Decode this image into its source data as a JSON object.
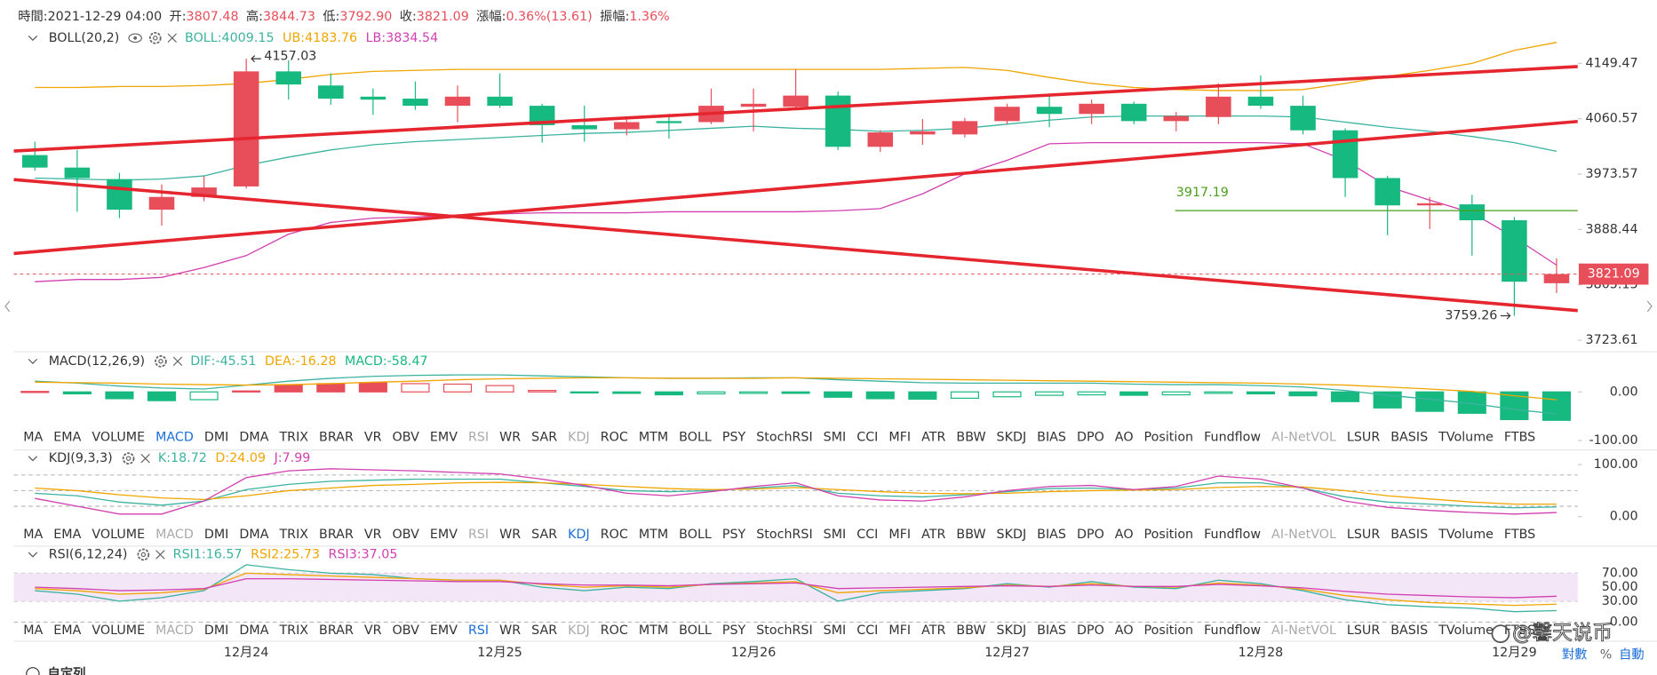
{
  "header": [
    {
      "label": "時間:",
      "value": "2021-12-29 04:00",
      "color": "#333333"
    },
    {
      "label": "开:",
      "value": "3807.48",
      "color": "#e84e5a"
    },
    {
      "label": "高:",
      "value": "3844.73",
      "color": "#e84e5a"
    },
    {
      "label": "低:",
      "value": "3792.90",
      "color": "#e84e5a"
    },
    {
      "label": "收:",
      "value": "3821.09",
      "color": "#e84e5a"
    },
    {
      "label": "漲幅:",
      "value": "0.36%(13.61)",
      "color": "#e84e5a"
    },
    {
      "label": "振幅:",
      "value": "1.36%",
      "color": "#e84e5a"
    }
  ],
  "label_separator": ":",
  "indicator_tabs": [
    "MA",
    "EMA",
    "VOLUME",
    "MACD",
    "DMI",
    "DMA",
    "TRIX",
    "BRAR",
    "VR",
    "OBV",
    "EMV",
    "RSI",
    "WR",
    "SAR",
    "KDJ",
    "ROC",
    "MTM",
    "BOLL",
    "PSY",
    "StochRSI",
    "SMI",
    "CCI",
    "MFI",
    "ATR",
    "BBW",
    "SKDJ",
    "BIAS",
    "DPO",
    "AO",
    "Position",
    "Fundflow",
    "AI-NetVOL",
    "LSUR",
    "BASIS",
    "TVolume",
    "FTBS"
  ],
  "footer": {
    "scale_modes": [
      "對數",
      "%",
      "自動"
    ],
    "custom_columns": "自定列"
  },
  "watermark": "@馨天说币",
  "chart_data": [
    {
      "type": "candlestick",
      "title": "BOLL(20,2)",
      "log": true,
      "ylim": [
        3708.25,
        4236.1
      ],
      "yticks": [
        4149.47,
        4060.57,
        3973.57,
        3888.44,
        3805.13,
        3723.61
      ],
      "up_color": "#e84e5a",
      "down_color": "#16b97f",
      "categories": [
        null,
        null,
        null,
        null,
        null,
        "12月24",
        null,
        null,
        null,
        null,
        null,
        "12月25",
        null,
        null,
        null,
        null,
        null,
        "12月26",
        null,
        null,
        null,
        null,
        null,
        "12月27",
        null,
        null,
        null,
        null,
        null,
        "12月28",
        null,
        null,
        null,
        null,
        null,
        "12月29",
        null
      ],
      "ohlc": [
        [
          4003.2,
          4024.3,
          3978.8,
          3983.7
        ],
        [
          3983.7,
          4011.3,
          3915.4,
          3967.4
        ],
        [
          3965.8,
          3975.5,
          3905.6,
          3918.6
        ],
        [
          3918.6,
          3957.6,
          3894.2,
          3938.2
        ],
        [
          3938.2,
          3970.7,
          3931.7,
          3952.8
        ],
        [
          3954.4,
          4157.03,
          3951.1,
          4136.5
        ],
        [
          4136.5,
          4154.35,
          4091.0,
          4115.3
        ],
        [
          4113.7,
          4133.2,
          4082.8,
          4092.6
        ],
        [
          4095.8,
          4108.8,
          4066.6,
          4091.0
        ],
        [
          4092.6,
          4120.2,
          4074.7,
          4081.2
        ],
        [
          4081.2,
          4113.7,
          4055.2,
          4095.8
        ],
        [
          4095.8,
          4133.2,
          4077.9,
          4081.2
        ],
        [
          4081.2,
          4084.4,
          4022.7,
          4050.3
        ],
        [
          4050.3,
          4081.2,
          4024.3,
          4043.8
        ],
        [
          4043.8,
          4063.3,
          4034.1,
          4055.2
        ],
        [
          4056.8,
          4068.2,
          4029.2,
          4053.6
        ],
        [
          4055.2,
          4108.8,
          4051.9,
          4081.2
        ],
        [
          4079.6,
          4108.8,
          4040.6,
          4084.4
        ],
        [
          4079.6,
          4139.7,
          4077.9,
          4097.5
        ],
        [
          4097.5,
          4104.0,
          4011.3,
          4016.2
        ],
        [
          4016.2,
          4042.2,
          4008.1,
          4038.9
        ],
        [
          4035.7,
          4060.1,
          4019.4,
          4040.6
        ],
        [
          4035.7,
          4061.7,
          4030.8,
          4056.8
        ],
        [
          4056.8,
          4084.4,
          4051.9,
          4079.6
        ],
        [
          4079.6,
          4100.7,
          4047.1,
          4068.2
        ],
        [
          4068.2,
          4091.0,
          4051.9,
          4084.4
        ],
        [
          4084.4,
          4087.7,
          4051.9,
          4056.8
        ],
        [
          4056.8,
          4071.4,
          4040.6,
          4064.9
        ],
        [
          4063.3,
          4117.0,
          4051.9,
          4095.8
        ],
        [
          4095.8,
          4130.0,
          4076.3,
          4081.2
        ],
        [
          4081.2,
          4097.5,
          4035.7,
          4042.2
        ],
        [
          4042.2,
          4045.4,
          3938.2,
          3967.4
        ],
        [
          3967.4,
          3970.7,
          3879.6,
          3925.2
        ],
        [
          3925.2,
          3938.2,
          3889.1,
          3928.4
        ],
        [
          3926.8,
          3941.4,
          3848.8,
          3902.4
        ],
        [
          3902.4,
          3907.3,
          3759.26,
          3809.7
        ],
        [
          3807.48,
          3844.73,
          3792.9,
          3821.09
        ]
      ],
      "series": [
        {
          "name": "BOLL",
          "color": "#3bb3a0",
          "values": [
            3967.4,
            3965.8,
            3964.2,
            3965.8,
            3970.7,
            3987.0,
            4000.0,
            4011.3,
            4019.4,
            4024.3,
            4027.6,
            4030.8,
            4034.1,
            4037.3,
            4038.9,
            4042.2,
            4045.4,
            4048.7,
            4045.4,
            4043.8,
            4040.6,
            4042.2,
            4045.4,
            4051.9,
            4058.4,
            4063.3,
            4064.9,
            4064.9,
            4064.9,
            4064.9,
            4063.3,
            4055.2,
            4047.1,
            4040.6,
            4032.4,
            4022.7,
            4009.15
          ]
        },
        {
          "name": "UB",
          "color": "#f0a500",
          "values": [
            4110.5,
            4110.5,
            4112.1,
            4112.1,
            4113.7,
            4117.0,
            4123.5,
            4131.6,
            4136.5,
            4138.1,
            4139.7,
            4139.7,
            4139.7,
            4139.7,
            4139.7,
            4139.7,
            4139.7,
            4139.7,
            4139.7,
            4139.7,
            4139.7,
            4141.3,
            4143.0,
            4138.1,
            4126.7,
            4117.0,
            4110.5,
            4107.2,
            4105.6,
            4105.6,
            4107.2,
            4117.0,
            4128.4,
            4138.1,
            4149.5,
            4170.6,
            4183.76
          ]
        },
        {
          "name": "LB",
          "color": "#d23fb0",
          "values": [
            3809.7,
            3813.0,
            3813.0,
            3816.2,
            3830.9,
            3848.8,
            3881.3,
            3899.1,
            3905.6,
            3907.3,
            3910.5,
            3912.1,
            3913.8,
            3913.8,
            3913.8,
            3915.4,
            3915.4,
            3915.4,
            3915.4,
            3917.0,
            3920.3,
            3943.0,
            3973.9,
            3995.0,
            4021.0,
            4022.7,
            4022.7,
            4022.7,
            4022.7,
            4022.7,
            4021.0,
            3995.0,
            3954.4,
            3933.3,
            3913.8,
            3876.4,
            3834.54
          ]
        }
      ],
      "hlines": [
        {
          "value": 3917.19,
          "color": "#4a9e1a"
        }
      ],
      "last_price_color": "#e84e5a"
    },
    {
      "type": "macd",
      "title": "MACD(12,26,9)",
      "ylim": [
        -100,
        41.3
      ],
      "yticks": [
        {
          "value": 0,
          "label": "0.00"
        },
        {
          "value": -100,
          "label": "-100.00"
        }
      ],
      "active_tab": 3,
      "disabled_tabs": [
        11,
        14,
        31
      ],
      "up_color": "#e84e5a",
      "down_color": "#16b97f",
      "histogram": {
        "name": "MACD",
        "color": "#16b97f",
        "values": [
          1,
          -4,
          -14,
          -18,
          -16,
          2,
          14,
          17,
          19,
          17,
          16,
          13,
          3,
          -2,
          -3,
          -6,
          -4,
          -3,
          -3,
          -11,
          -14,
          -15,
          -13,
          -10,
          -7,
          -6,
          -7,
          -6,
          -3,
          -4,
          -8,
          -20,
          -33,
          -40,
          -44,
          -57,
          -58.47
        ]
      },
      "series": [
        {
          "name": "DIF",
          "color": "#3bb3a0",
          "values": [
            22,
            18,
            12,
            8,
            6,
            14,
            22,
            28,
            32,
            34,
            35,
            35,
            33,
            31,
            29,
            28,
            28,
            29,
            29,
            25,
            22,
            19,
            18,
            18,
            18,
            18,
            16,
            15,
            15,
            13,
            10,
            3,
            -7,
            -15,
            -24,
            -36,
            -45.51
          ]
        },
        {
          "name": "DEA",
          "color": "#f0a500",
          "values": [
            20,
            19,
            18,
            16,
            15,
            14,
            15,
            17,
            20,
            22,
            25,
            27,
            28,
            29,
            29,
            28,
            28,
            28,
            29,
            28,
            27,
            26,
            25,
            24,
            23,
            22,
            21,
            20,
            19,
            18,
            16,
            14,
            10,
            6,
            1,
            -8,
            -16.28
          ]
        }
      ]
    },
    {
      "type": "line",
      "title": "KDJ(9,3,3)",
      "ylim": [
        -14,
        124
      ],
      "yticks": [
        {
          "value": 100,
          "label": "100.00"
        },
        {
          "value": 0,
          "label": "0.00"
        }
      ],
      "ref_lines": [
        80,
        50,
        20
      ],
      "active_tab": 14,
      "disabled_tabs": [
        3,
        11,
        31
      ],
      "series": [
        {
          "name": "K",
          "color": "#3bb3a0",
          "values": [
            45,
            40,
            28,
            22,
            30,
            52,
            62,
            68,
            70,
            72,
            72,
            72,
            65,
            58,
            50,
            48,
            50,
            55,
            60,
            45,
            40,
            38,
            42,
            48,
            54,
            55,
            52,
            55,
            65,
            65,
            55,
            38,
            28,
            24,
            20,
            17,
            18.72
          ]
        },
        {
          "name": "D",
          "color": "#f0a500",
          "values": [
            55,
            50,
            42,
            36,
            33,
            40,
            50,
            55,
            60,
            62,
            65,
            66,
            65,
            62,
            58,
            54,
            52,
            53,
            56,
            52,
            48,
            45,
            44,
            45,
            48,
            50,
            51,
            52,
            56,
            58,
            57,
            50,
            40,
            34,
            28,
            24,
            24.09
          ]
        },
        {
          "name": "J",
          "color": "#d23fb0",
          "values": [
            35,
            20,
            5,
            5,
            30,
            75,
            88,
            92,
            90,
            88,
            85,
            82,
            72,
            60,
            45,
            40,
            48,
            58,
            65,
            40,
            32,
            30,
            38,
            50,
            58,
            60,
            52,
            58,
            78,
            72,
            55,
            30,
            18,
            12,
            8,
            5,
            7.99
          ]
        }
      ]
    },
    {
      "type": "line",
      "title": "RSI(6,12,24)",
      "ylim": [
        0,
        86
      ],
      "yticks": [
        {
          "value": 70,
          "label": "70.00"
        },
        {
          "value": 50,
          "label": "50.00"
        },
        {
          "value": 30,
          "label": "30.00"
        },
        {
          "value": 0,
          "label": "0.00"
        }
      ],
      "grid": true,
      "band": [
        30,
        70
      ],
      "active_tab": 11,
      "disabled_tabs": [
        3,
        14,
        31
      ],
      "series": [
        {
          "name": "RSI1",
          "color": "#3bb3a0",
          "values": [
            45,
            40,
            30,
            35,
            45,
            82,
            75,
            70,
            68,
            62,
            60,
            60,
            50,
            45,
            50,
            48,
            55,
            58,
            62,
            30,
            42,
            45,
            48,
            55,
            50,
            58,
            50,
            48,
            60,
            55,
            45,
            32,
            25,
            22,
            20,
            15,
            16.57
          ]
        },
        {
          "name": "RSI2",
          "color": "#f0a500",
          "values": [
            48,
            45,
            40,
            42,
            47,
            70,
            68,
            66,
            64,
            62,
            60,
            60,
            54,
            50,
            52,
            50,
            54,
            56,
            58,
            42,
            45,
            47,
            49,
            53,
            51,
            55,
            51,
            50,
            56,
            53,
            47,
            38,
            32,
            28,
            26,
            24,
            25.73
          ]
        },
        {
          "name": "RSI3",
          "color": "#d23fb0",
          "values": [
            50,
            48,
            45,
            46,
            48,
            62,
            62,
            61,
            60,
            59,
            58,
            58,
            55,
            53,
            53,
            52,
            54,
            55,
            56,
            48,
            49,
            50,
            51,
            52,
            51,
            53,
            51,
            51,
            54,
            52,
            49,
            44,
            40,
            38,
            36,
            35,
            37.05
          ]
        }
      ]
    }
  ]
}
